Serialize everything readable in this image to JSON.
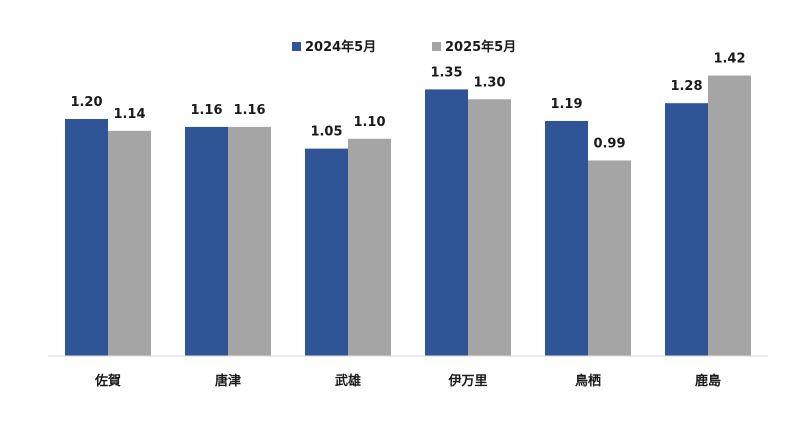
{
  "chart_data": {
    "type": "bar",
    "title": "",
    "xlabel": "",
    "ylabel": "",
    "ylim": [
      0,
      1.6
    ],
    "grid": false,
    "legend_position": "top-center",
    "categories": [
      "佐賀",
      "唐津",
      "武雄",
      "伊万里",
      "鳥栖",
      "鹿島"
    ],
    "series": [
      {
        "name": "2024年5月",
        "color": "#2f5597",
        "values": [
          1.2,
          1.16,
          1.05,
          1.35,
          1.19,
          1.28
        ],
        "labels": [
          "1.20",
          "1.16",
          "1.05",
          "1.35",
          "1.19",
          "1.28"
        ]
      },
      {
        "name": "2025年5月",
        "color": "#a5a5a5",
        "values": [
          1.14,
          1.16,
          1.1,
          1.3,
          0.99,
          1.42
        ],
        "labels": [
          "1.14",
          "1.16",
          "1.10",
          "1.30",
          "0.99",
          "1.42"
        ]
      }
    ]
  }
}
